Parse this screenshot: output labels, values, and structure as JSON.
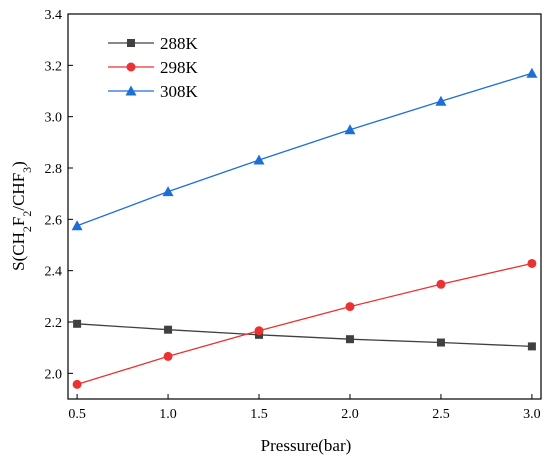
{
  "chart_data": {
    "type": "line",
    "title": "",
    "xlabel": "Pressure(bar)",
    "ylabel": {
      "parts": [
        {
          "t": "S(CH",
          "sub": false
        },
        {
          "t": "2",
          "sub": true
        },
        {
          "t": "F",
          "sub": false
        },
        {
          "t": "2",
          "sub": true
        },
        {
          "t": "/CHF",
          "sub": false
        },
        {
          "t": "3",
          "sub": true
        },
        {
          "t": ")",
          "sub": false
        }
      ]
    },
    "x": [
      0.5,
      1.0,
      1.5,
      2.0,
      2.5,
      3.0
    ],
    "xlim": [
      0.45,
      3.05
    ],
    "ylim": [
      1.9,
      3.4
    ],
    "xticks": [
      "0.5",
      "1.0",
      "1.5",
      "2.0",
      "2.5",
      "3.0"
    ],
    "yticks": [
      "2.0",
      "2.2",
      "2.4",
      "2.6",
      "2.8",
      "3.0",
      "3.2",
      "3.4"
    ],
    "grid": false,
    "legend_position": "top-left",
    "series": [
      {
        "name": "288K",
        "color": "#404040",
        "marker": "square",
        "values": [
          2.193,
          2.17,
          2.15,
          2.133,
          2.12,
          2.105
        ]
      },
      {
        "name": "298K",
        "color": "#ea3232",
        "marker": "circle",
        "values": [
          1.957,
          2.066,
          2.166,
          2.26,
          2.347,
          2.428
        ]
      },
      {
        "name": "308K",
        "color": "#1d6fd6",
        "marker": "triangle",
        "values": [
          2.575,
          2.708,
          2.831,
          2.949,
          3.06,
          3.169
        ]
      }
    ]
  }
}
